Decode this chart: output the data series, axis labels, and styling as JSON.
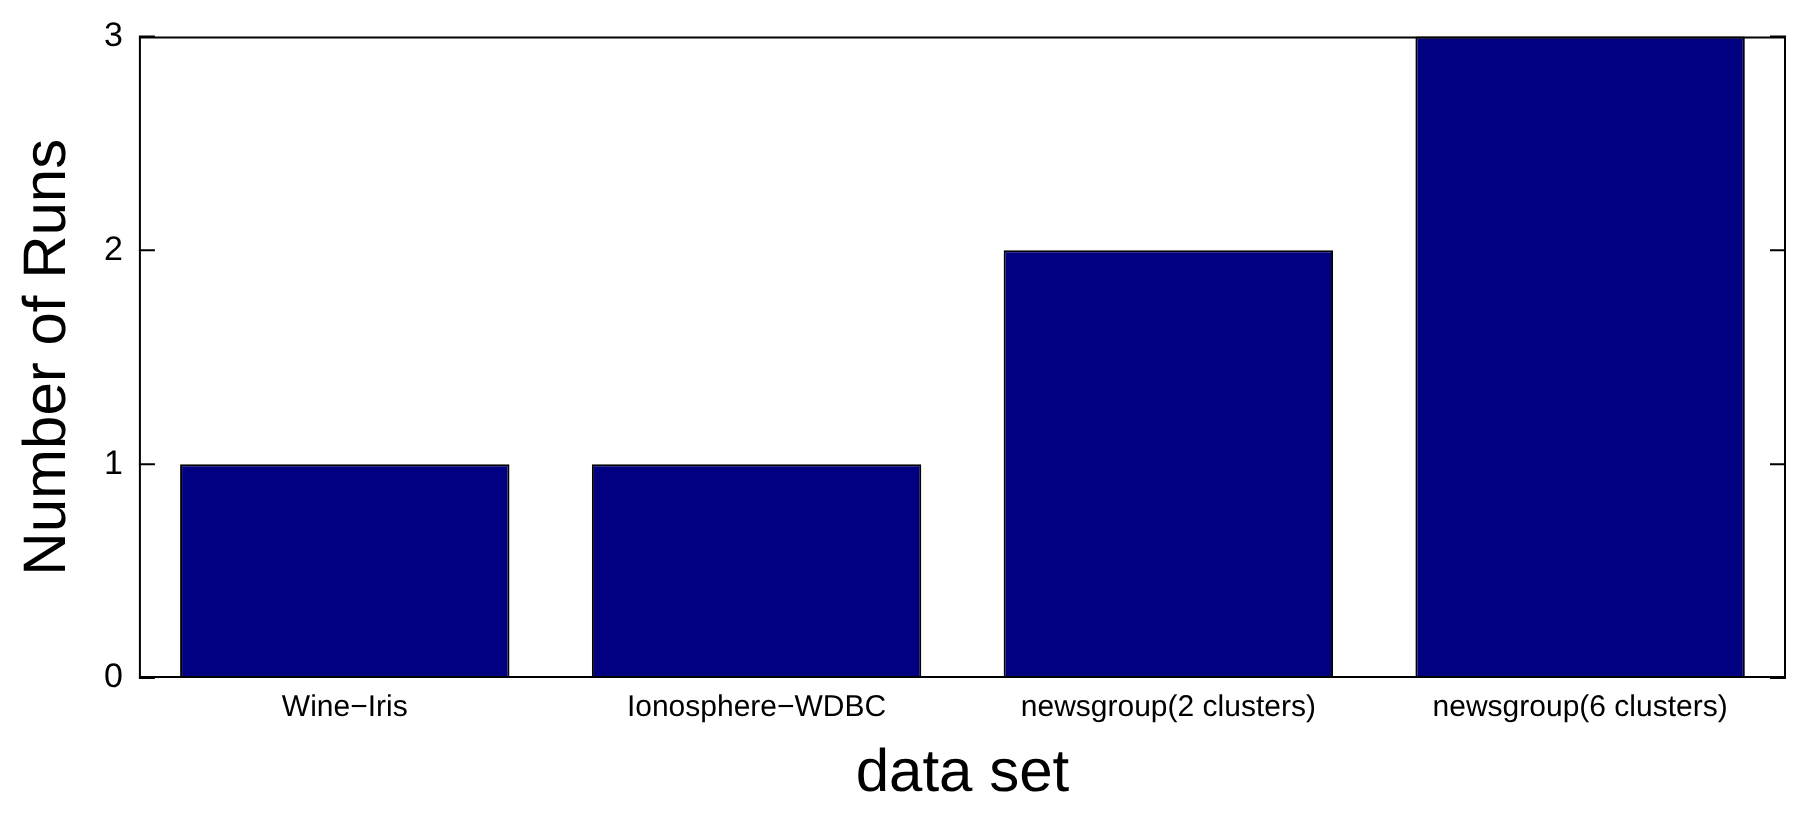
{
  "chart_data": {
    "type": "bar",
    "xlabel": "data set",
    "ylabel": "Number of Runs",
    "categories": [
      "Wine−Iris",
      "Ionosphere−WDBC",
      "newsgroup(2 clusters)",
      "newsgroup(6 clusters)"
    ],
    "values": [
      1,
      1,
      2,
      3
    ],
    "color": "#000080",
    "ylim": [
      0,
      3
    ],
    "yticks": [
      0,
      1,
      2,
      3
    ],
    "grid": false,
    "legend": false
  }
}
